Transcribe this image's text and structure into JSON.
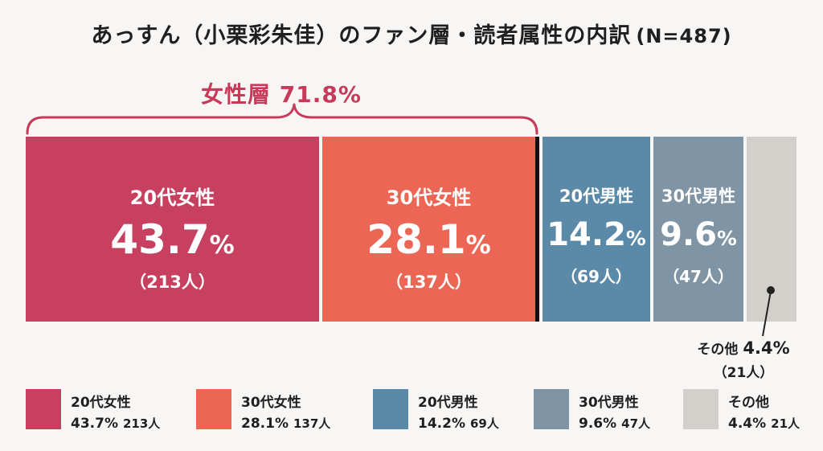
{
  "title": "あっすん（小栗彩朱佳）のファン層・読者属性の内訳",
  "n_label": "(N=487)",
  "group_label": "女性層 71.8%",
  "colors": {
    "female20": "#c7405f",
    "female30": "#ec6656",
    "male20": "#5b8aa9",
    "male30": "#7f94a4",
    "other": "#d3cfcb",
    "accent": "#c83a5a"
  },
  "chart_data": {
    "type": "bar",
    "stacked_100": true,
    "total": 487,
    "segments": [
      {
        "name": "20代女性",
        "percent": 43.7,
        "percent_text": "43.7",
        "count": 213,
        "count_text": "（213人）",
        "legend_value": "43.7%",
        "legend_count": "213人"
      },
      {
        "name": "30代女性",
        "percent": 28.1,
        "percent_text": "28.1",
        "count": 137,
        "count_text": "（137人）",
        "legend_value": "28.1%",
        "legend_count": "137人"
      },
      {
        "name": "20代男性",
        "percent": 14.2,
        "percent_text": "14.2",
        "count": 69,
        "count_text": "（69人）",
        "legend_value": "14.2%",
        "legend_count": "69人"
      },
      {
        "name": "30代男性",
        "percent": 9.6,
        "percent_text": "9.6",
        "count": 47,
        "count_text": "（47人）",
        "legend_value": "9.6%",
        "legend_count": "47人"
      },
      {
        "name": "その他",
        "percent": 4.4,
        "percent_text": "4.4",
        "count": 21,
        "count_text": "（21人）",
        "legend_value": "4.4%",
        "legend_count": "21人"
      }
    ],
    "percent_sign": "%",
    "other_callout": {
      "name": "その他",
      "value": "4.4%",
      "count": "（21人）"
    },
    "legend_placement": "bottom"
  }
}
